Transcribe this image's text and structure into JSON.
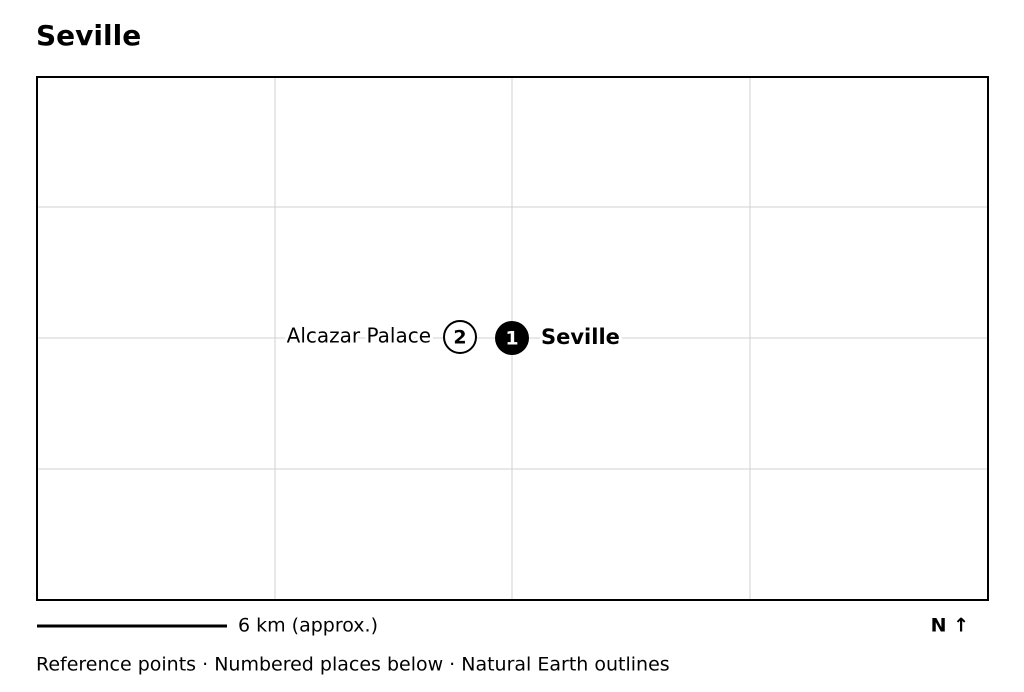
{
  "header": {
    "title": "Seville"
  },
  "places": [
    {
      "number": "1",
      "label": "Seville"
    },
    {
      "number": "2",
      "label": "Alcazar Palace"
    }
  ],
  "scale_bar": {
    "label": "6 km (approx.)"
  },
  "north_arrow": {
    "label": "N ↑"
  },
  "footer": {
    "text": "Reference points · Numbered places below · Natural Earth outlines"
  }
}
